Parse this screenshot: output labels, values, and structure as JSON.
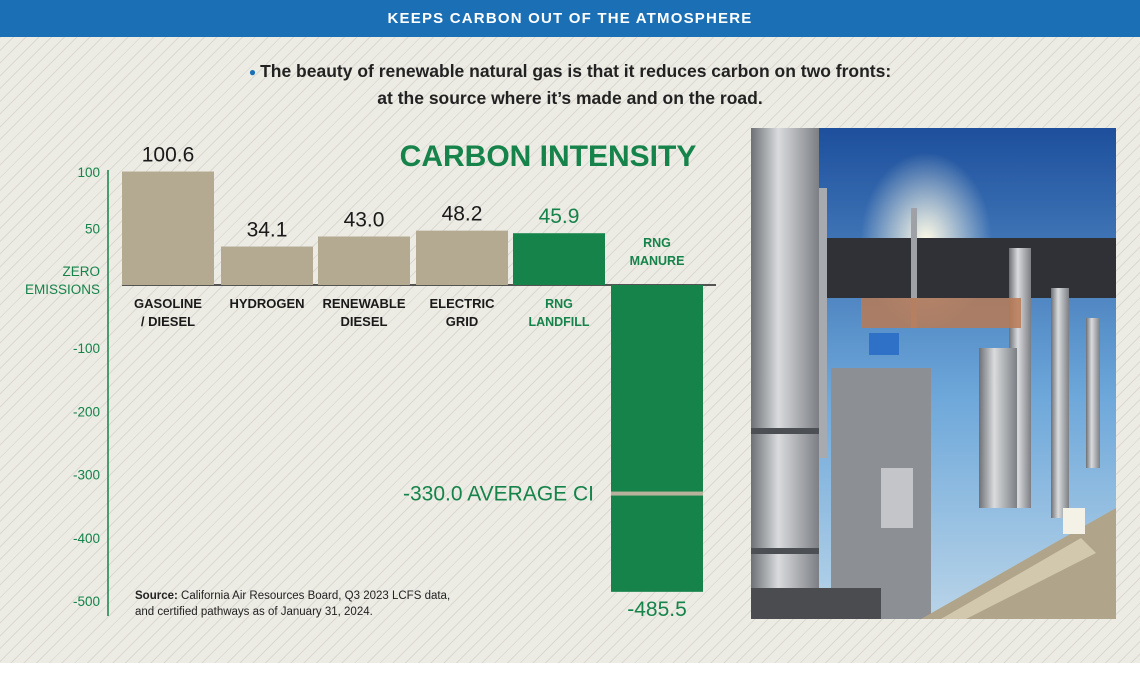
{
  "banner": {
    "title": "KEEPS CARBON OUT OF THE ATMOSPHERE"
  },
  "intro": {
    "line1": "The beauty of renewable natural gas is that it reduces carbon on two fronts:",
    "line2": "at the source where it’s made and on the road."
  },
  "colors": {
    "banner": "#1a6fb5",
    "bar_standard": "#b4aa91",
    "bar_rng": "#15834a",
    "axis_text": "#15834a",
    "bullet": "#1a6fb5"
  },
  "photo": {
    "icon": "rng-facility-photo"
  },
  "chart_data": {
    "type": "bar",
    "title": "CARBON INTENSITY",
    "categories": [
      "GASOLINE / DIESEL",
      "HYDROGEN",
      "RENEWABLE DIESEL",
      "ELECTRIC GRID",
      "RNG LANDFILL",
      "RNG MANURE"
    ],
    "values": [
      100.6,
      34.1,
      43.0,
      48.2,
      45.9,
      -485.5
    ],
    "value_labels": [
      "100.6",
      "34.1",
      "43.0",
      "48.2",
      "45.9",
      "-485.5"
    ],
    "y_ticks": [
      "100",
      "50",
      "ZERO EMISSIONS",
      "-100",
      "-200",
      "-300",
      "-400",
      "-500"
    ],
    "ylim": [
      -500,
      110
    ],
    "highlighted": [
      "RNG LANDFILL",
      "RNG MANURE"
    ],
    "annotation": {
      "label": "-330.0 AVERAGE CI",
      "value": -330.0,
      "category": "RNG MANURE"
    },
    "grid": false,
    "source": {
      "label": "Source:",
      "text_line1": "California Air Resources Board, Q3 2023 LCFS data,",
      "text_line2": "and certified pathways as of January 31, 2024."
    }
  }
}
